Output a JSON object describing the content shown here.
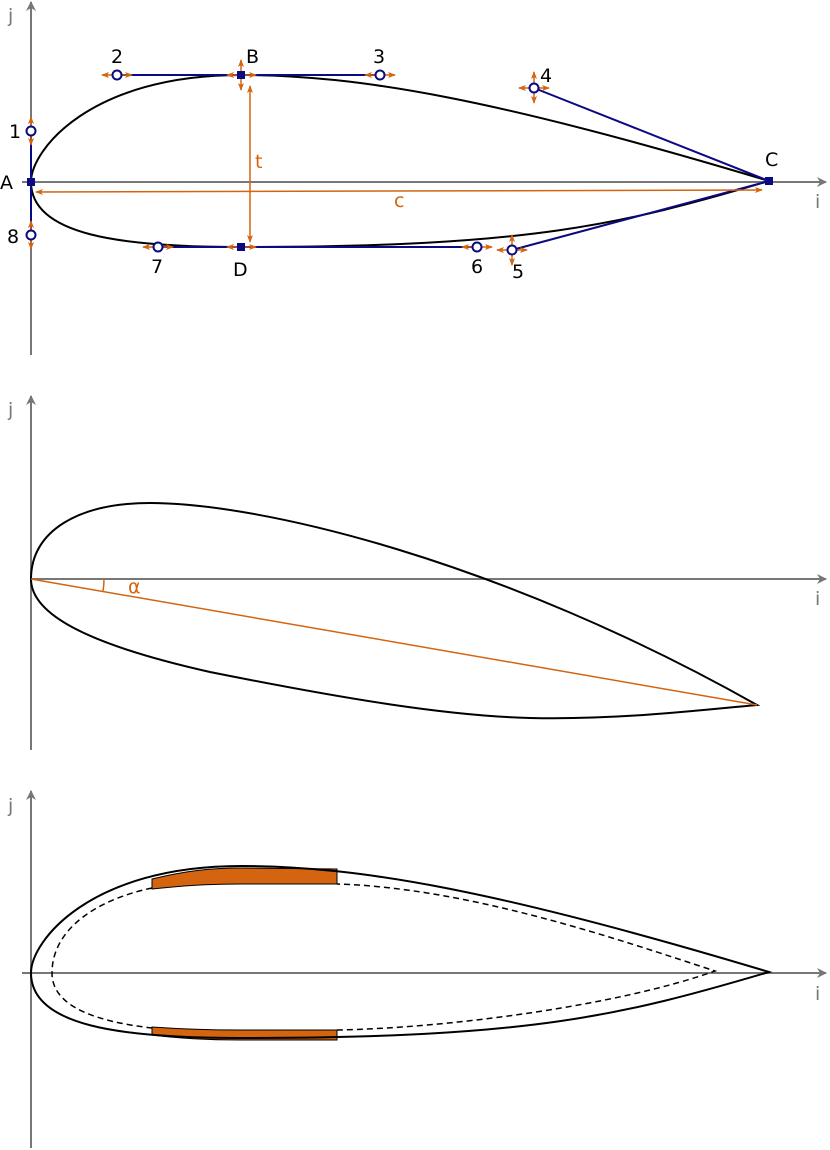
{
  "colors": {
    "axis": "#777777",
    "curve": "#000000",
    "control": "#0a0a82",
    "dimension": "#d4640f"
  },
  "panel_top": {
    "axis_x_label": "i",
    "axis_y_label": "j",
    "points": {
      "A": "A",
      "B": "B",
      "C": "C",
      "D": "D"
    },
    "control_points": [
      "1",
      "2",
      "3",
      "4",
      "5",
      "6",
      "7",
      "8"
    ],
    "thickness_label": "t",
    "chord_label": "c"
  },
  "panel_middle": {
    "axis_x_label": "i",
    "axis_y_label": "j",
    "angle_label": "α"
  },
  "panel_bottom": {
    "axis_x_label": "i",
    "axis_y_label": "j"
  }
}
